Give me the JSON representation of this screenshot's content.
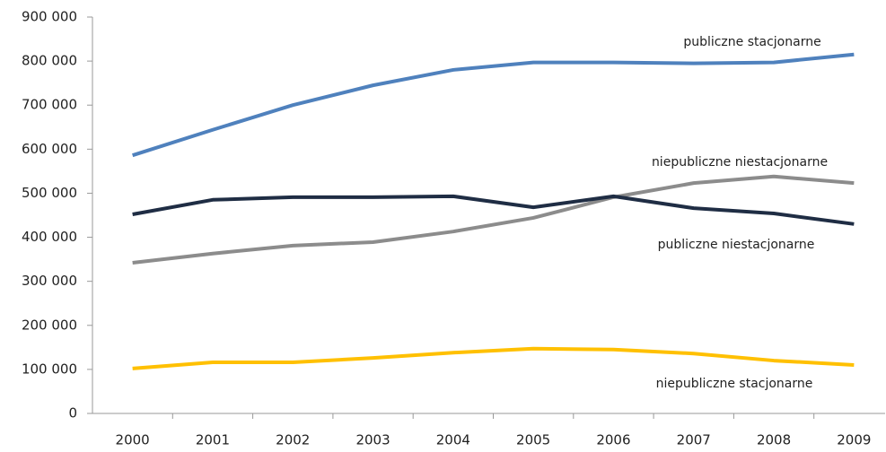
{
  "chart_data": {
    "type": "line",
    "categories": [
      "2000",
      "2001",
      "2002",
      "2003",
      "2004",
      "2005",
      "2006",
      "2007",
      "2008",
      "2009"
    ],
    "series": [
      {
        "name": "publiczne stacjonarne",
        "color": "#4f81bd",
        "values": [
          586000,
          644000,
          700000,
          745000,
          780000,
          797000,
          797000,
          795000,
          797000,
          815000
        ]
      },
      {
        "name": "niepubliczne niestacjonarne",
        "color": "#8c8c8c",
        "values": [
          342000,
          363000,
          381000,
          389000,
          413000,
          444000,
          491000,
          523000,
          538000,
          523000
        ]
      },
      {
        "name": "publiczne niestacjonarne",
        "color": "#1f2d44",
        "values": [
          452000,
          485000,
          491000,
          491000,
          493000,
          468000,
          493000,
          466000,
          454000,
          430000
        ]
      },
      {
        "name": "niepubliczne stacjonarne",
        "color": "#ffc000",
        "values": [
          102000,
          116000,
          116000,
          126000,
          138000,
          147000,
          145000,
          136000,
          120000,
          110000
        ]
      }
    ],
    "ylim": [
      0,
      900000
    ],
    "yticks": [
      0,
      {
        "value": 100000,
        "label": "100 000"
      },
      {
        "value": 200000,
        "label": "200 000"
      },
      {
        "value": 300000,
        "label": "300 000"
      },
      {
        "value": 400000,
        "label": "400 000"
      },
      {
        "value": 500000,
        "label": "500 000"
      },
      {
        "value": 600000,
        "label": "600 000"
      },
      {
        "value": 700000,
        "label": "700 000"
      },
      {
        "value": 800000,
        "label": "800 000"
      },
      {
        "value": 900000,
        "label": "900 000"
      }
    ],
    "grid": false
  }
}
